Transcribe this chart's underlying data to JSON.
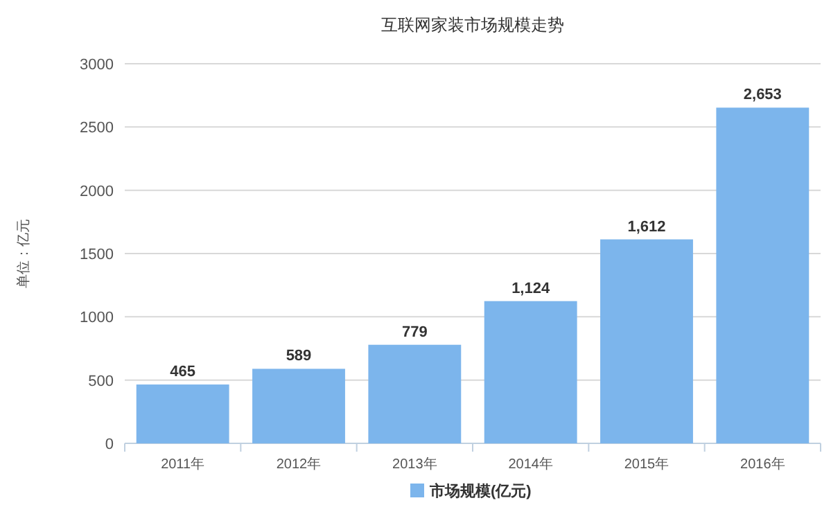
{
  "chart_data": {
    "type": "bar",
    "title": "互联网家装市场规模走势",
    "ylabel": "单位：亿元",
    "categories": [
      "2011年",
      "2012年",
      "2013年",
      "2014年",
      "2015年",
      "2016年"
    ],
    "series": [
      {
        "name": "市场规模(亿元)",
        "color": "#7cb5ec",
        "values": [
          465,
          589,
          779,
          1124,
          1612,
          2653
        ],
        "value_labels": [
          "465",
          "589",
          "779",
          "1,124",
          "1,612",
          "2,653"
        ]
      }
    ],
    "ylim": [
      0,
      3000
    ],
    "yticks": [
      0,
      500,
      1000,
      1500,
      2000,
      2500,
      3000
    ],
    "grid": "y",
    "legend": "bottom"
  }
}
